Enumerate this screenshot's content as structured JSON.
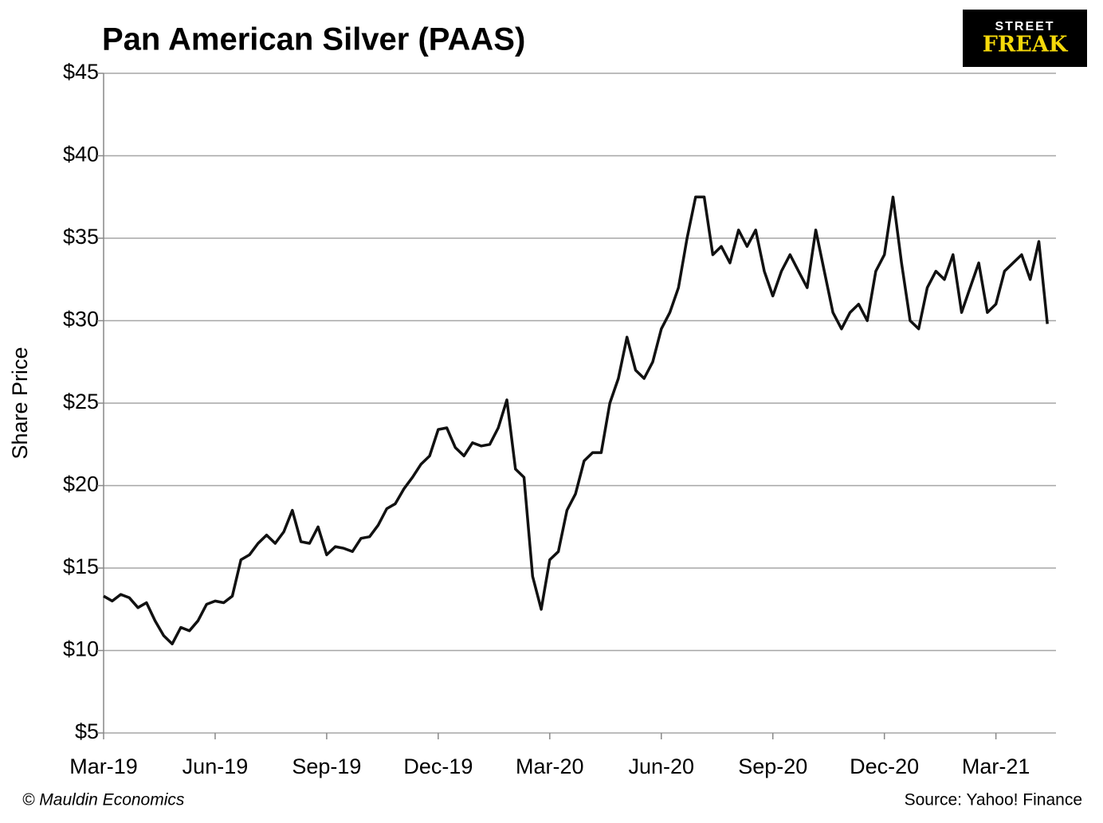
{
  "chart_data": {
    "type": "line",
    "title": "Pan American Silver (PAAS)",
    "y_label": "Share Price",
    "categories": [
      "Mar-19",
      null,
      null,
      null,
      null,
      null,
      null,
      null,
      null,
      null,
      null,
      null,
      null,
      "Jun-19",
      null,
      null,
      null,
      null,
      null,
      null,
      null,
      null,
      null,
      null,
      null,
      null,
      "Sep-19",
      null,
      null,
      null,
      null,
      null,
      null,
      null,
      null,
      null,
      null,
      null,
      null,
      "Dec-19",
      null,
      null,
      null,
      null,
      null,
      null,
      null,
      null,
      null,
      null,
      null,
      null,
      "Mar-20",
      null,
      null,
      null,
      null,
      null,
      null,
      null,
      null,
      null,
      null,
      null,
      null,
      "Jun-20",
      null,
      null,
      null,
      null,
      null,
      null,
      null,
      null,
      null,
      null,
      null,
      null,
      "Sep-20",
      null,
      null,
      null,
      null,
      null,
      null,
      null,
      null,
      null,
      null,
      null,
      null,
      "Dec-20",
      null,
      null,
      null,
      null,
      null,
      null,
      null,
      null,
      null,
      null,
      null,
      null,
      "Mar-21",
      null,
      null,
      null,
      null,
      null,
      null
    ],
    "series": [
      {
        "name": "PAAS",
        "color": "#111111",
        "values": [
          13.3,
          13.0,
          13.4,
          13.2,
          12.6,
          12.9,
          11.8,
          10.9,
          10.4,
          11.4,
          11.2,
          11.8,
          12.8,
          13.0,
          12.9,
          13.3,
          15.5,
          15.8,
          16.5,
          17.0,
          16.5,
          17.2,
          18.5,
          16.6,
          16.5,
          17.5,
          15.8,
          16.3,
          16.2,
          16.0,
          16.8,
          16.9,
          17.6,
          18.6,
          18.9,
          19.8,
          20.5,
          21.3,
          21.8,
          23.4,
          23.5,
          22.3,
          21.8,
          22.6,
          22.4,
          22.5,
          23.5,
          25.2,
          21.0,
          20.5,
          14.5,
          12.5,
          15.5,
          16.0,
          18.5,
          19.5,
          21.5,
          22.0,
          22.0,
          25.0,
          26.5,
          29.0,
          27.0,
          26.5,
          27.5,
          29.5,
          30.5,
          32.0,
          35.0,
          37.5,
          37.5,
          34.0,
          34.5,
          33.5,
          35.5,
          34.5,
          35.5,
          33.0,
          31.5,
          33.0,
          34.0,
          33.0,
          32.0,
          35.5,
          33.0,
          30.5,
          29.5,
          30.5,
          31.0,
          30.0,
          33.0,
          34.0,
          37.5,
          33.5,
          30.0,
          29.5,
          32.0,
          33.0,
          32.5,
          34.0,
          30.5,
          32.0,
          33.5,
          30.5,
          31.0,
          33.0,
          33.5,
          34.0,
          32.5,
          34.8,
          29.8
        ]
      }
    ],
    "ylim": [
      5,
      45
    ],
    "yticks": [
      {
        "value": 5,
        "label": "$5"
      },
      {
        "value": 10,
        "label": "$10"
      },
      {
        "value": 15,
        "label": "$15"
      },
      {
        "value": 20,
        "label": "$20"
      },
      {
        "value": 25,
        "label": "$25"
      },
      {
        "value": 30,
        "label": "$30"
      },
      {
        "value": 35,
        "label": "$35"
      },
      {
        "value": 40,
        "label": "$40"
      },
      {
        "value": 45,
        "label": "$45"
      }
    ],
    "grid": true
  },
  "logo": {
    "top": "STREET",
    "bottom": "FREAK"
  },
  "footer": {
    "left": "© Mauldin Economics",
    "right": "Source: Yahoo! Finance"
  }
}
